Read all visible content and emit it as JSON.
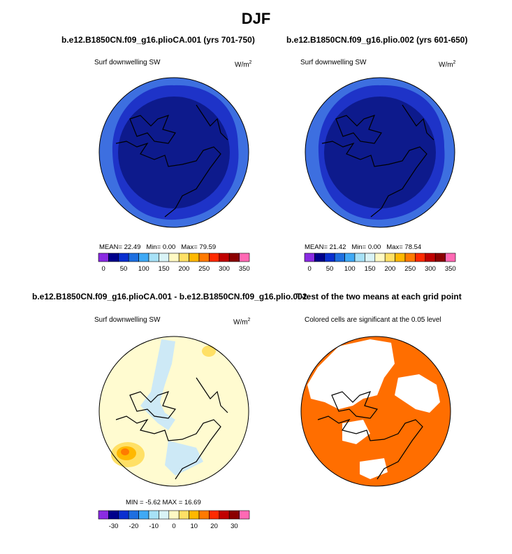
{
  "title": "DJF",
  "panels": [
    {
      "title": "b.e12.B1850CN.f09_g16.plioCA.001 (yrs 701-750)",
      "variable": "Surf downwelling SW",
      "units_base": "W/m",
      "units_exp": "2",
      "stats": {
        "mean_label": "MEAN=",
        "mean": "22.49",
        "min_label": "Min=",
        "min": "0.00",
        "max_label": "Max=",
        "max": "79.59"
      }
    },
    {
      "title": "b.e12.B1850CN.f09_g16.plio.002 (yrs 601-650)",
      "variable": "Surf downwelling SW",
      "units_base": "W/m",
      "units_exp": "2",
      "stats": {
        "mean_label": "MEAN=",
        "mean": "21.42",
        "min_label": "Min=",
        "min": "0.00",
        "max_label": "Max=",
        "max": "78.54"
      }
    },
    {
      "title": "b.e12.B1850CN.f09_g16.plioCA.001 - b.e12.B1850CN.f09_g16.plio.002",
      "variable": "Surf downwelling SW",
      "units_base": "W/m",
      "units_exp": "2",
      "stats": {
        "min_label": "MIN =",
        "min": "-5.62",
        "max_label": "MAX =",
        "max": "16.69"
      }
    },
    {
      "title": "T-test of the two means at each grid point",
      "subtitle": "Colored cells are significant at the 0.05 level"
    }
  ],
  "chart_data": [
    {
      "type": "heatmap",
      "projection": "north polar stereographic",
      "title": "b.e12.B1850CN.f09_g16.plioCA.001 (yrs 701-750)",
      "variable": "Surf downwelling SW",
      "units": "W/m^2",
      "mean": 22.49,
      "min": 0.0,
      "max": 79.59,
      "colorbar": {
        "levels": [
          0,
          50,
          100,
          150,
          200,
          250,
          300,
          350
        ],
        "colors": [
          "#8a2be2",
          "#00008b",
          "#0a2fd0",
          "#1e6fe0",
          "#3fa9f5",
          "#a7e1f7",
          "#d9f3f7",
          "#fff9c4",
          "#ffe066",
          "#ffb800",
          "#ff7a00",
          "#ff2a00",
          "#c00000",
          "#8b0000",
          "#ff69b4"
        ]
      }
    },
    {
      "type": "heatmap",
      "projection": "north polar stereographic",
      "title": "b.e12.B1850CN.f09_g16.plio.002 (yrs 601-650)",
      "variable": "Surf downwelling SW",
      "units": "W/m^2",
      "mean": 21.42,
      "min": 0.0,
      "max": 78.54,
      "colorbar": {
        "levels": [
          0,
          50,
          100,
          150,
          200,
          250,
          300,
          350
        ],
        "colors": [
          "#8a2be2",
          "#00008b",
          "#0a2fd0",
          "#1e6fe0",
          "#3fa9f5",
          "#a7e1f7",
          "#d9f3f7",
          "#fff9c4",
          "#ffe066",
          "#ffb800",
          "#ff7a00",
          "#ff2a00",
          "#c00000",
          "#8b0000",
          "#ff69b4"
        ]
      }
    },
    {
      "type": "heatmap",
      "projection": "north polar stereographic",
      "title": "b.e12.B1850CN.f09_g16.plioCA.001 - b.e12.B1850CN.f09_g16.plio.002",
      "variable": "Surf downwelling SW",
      "units": "W/m^2",
      "min": -5.62,
      "max": 16.69,
      "colorbar": {
        "levels": [
          -30,
          -20,
          -10,
          0,
          10,
          20,
          30
        ],
        "colors": [
          "#8a2be2",
          "#00008b",
          "#0a2fd0",
          "#1e6fe0",
          "#3fa9f5",
          "#a7e1f7",
          "#d9f3f7",
          "#fff9c4",
          "#ffe066",
          "#ffb800",
          "#ff7a00",
          "#ff2a00",
          "#c00000",
          "#8b0000",
          "#ff69b4"
        ]
      }
    },
    {
      "type": "heatmap",
      "projection": "north polar stereographic",
      "title": "T-test of the two means at each grid point",
      "note": "Colored cells are significant at the 0.05 level",
      "significant_color": "#ff6e00"
    }
  ],
  "colors": {
    "deep_blue": "#0d1a8c",
    "mid_blue": "#1e33c8",
    "outer_blue": "#3d6fe0",
    "pale_yellow": "#fffbd0",
    "light_cyan": "#cde9f6",
    "orange_sig": "#ff6e00"
  }
}
